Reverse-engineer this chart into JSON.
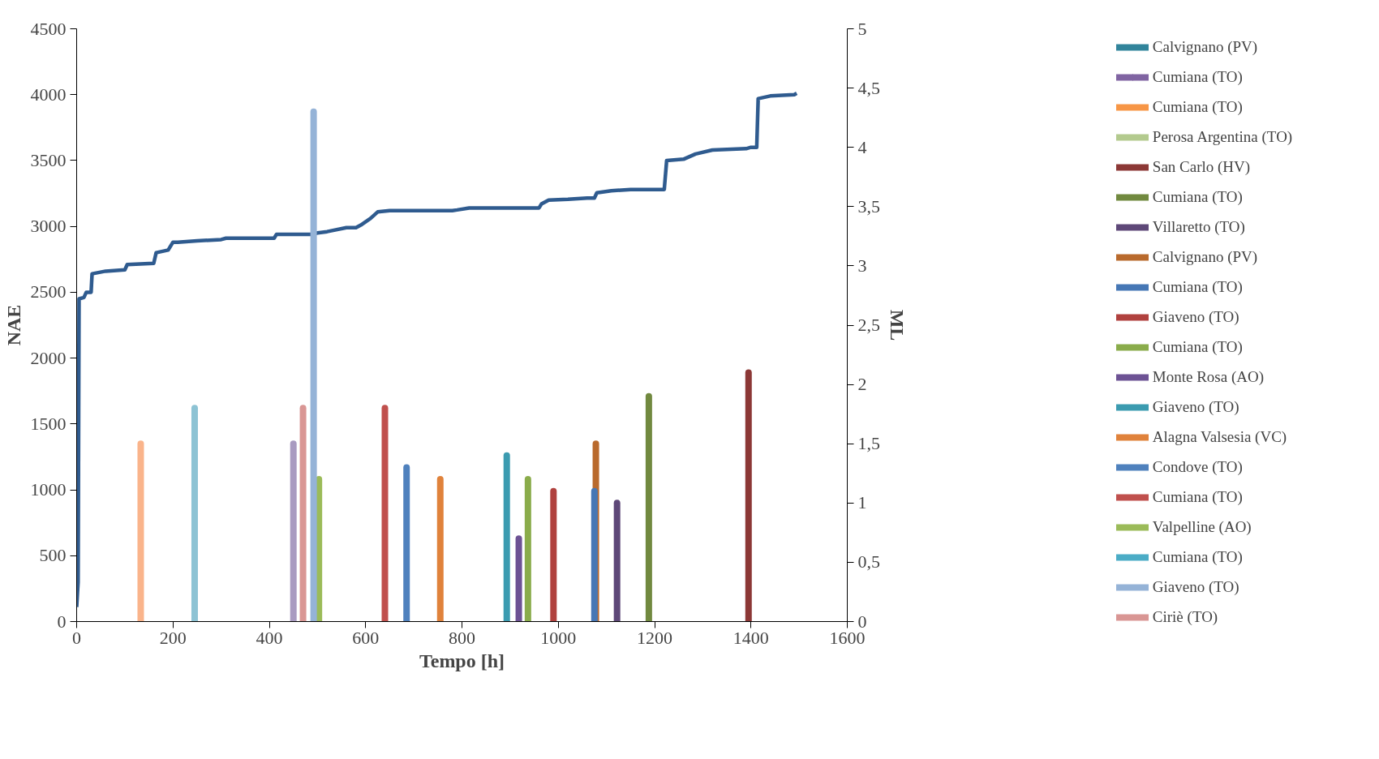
{
  "chart_data": {
    "type": "line",
    "xlabel": "Tempo [h]",
    "ylabel": "NAE",
    "y2label": "ML",
    "xlim": [
      0,
      1600
    ],
    "xticks": [
      0,
      200,
      400,
      600,
      800,
      1000,
      1200,
      1400,
      1600
    ],
    "ylim": [
      0,
      4500
    ],
    "yticks": [
      0,
      500,
      1000,
      1500,
      2000,
      2500,
      3000,
      3500,
      4000,
      4500
    ],
    "y2lim": [
      0,
      5
    ],
    "y2ticks": [
      0,
      {
        "value": 0.5,
        "label": "0,5"
      },
      1,
      {
        "value": 1.5,
        "label": "1,5"
      },
      2,
      {
        "value": 2.5,
        "label": "2,5"
      },
      3,
      {
        "value": 3.5,
        "label": "3,5"
      },
      4,
      {
        "value": 4.5,
        "label": "4,5"
      },
      5
    ],
    "grid": false,
    "legend": "right",
    "series": [
      {
        "type": "line",
        "color": "#2f5b8f",
        "x": [
          0,
          3,
          5,
          15,
          20,
          30,
          32,
          60,
          100,
          105,
          160,
          165,
          190,
          200,
          210,
          250,
          300,
          310,
          410,
          415,
          490,
          500,
          520,
          560,
          580,
          590,
          610,
          625,
          650,
          780,
          790,
          815,
          960,
          965,
          980,
          1020,
          1060,
          1075,
          1080,
          1110,
          1150,
          1220,
          1225,
          1260,
          1285,
          1320,
          1390,
          1400,
          1412,
          1415,
          1440,
          1490,
          1495
        ],
        "values": [
          110,
          300,
          2450,
          2460,
          2500,
          2500,
          2640,
          2660,
          2670,
          2710,
          2720,
          2800,
          2820,
          2880,
          2880,
          2890,
          2900,
          2910,
          2910,
          2940,
          2940,
          2950,
          2960,
          2990,
          2990,
          3010,
          3060,
          3110,
          3120,
          3120,
          3125,
          3140,
          3140,
          3170,
          3200,
          3205,
          3215,
          3215,
          3255,
          3270,
          3280,
          3280,
          3500,
          3510,
          3550,
          3580,
          3590,
          3600,
          3600,
          3970,
          3990,
          4000,
          4010
        ]
      },
      {
        "type": "bar",
        "axis": "y2",
        "name": "Calvignano (PV)",
        "color": "#31849b"
      },
      {
        "type": "bar",
        "axis": "y2",
        "name": "Cumiana (TO)",
        "color": "#8064a2",
        "marker": "cross"
      },
      {
        "type": "bar",
        "axis": "y2",
        "name": "Cumiana (TO)",
        "color": "#f79646"
      },
      {
        "type": "bar",
        "axis": "y2",
        "name": "Perosa Argentina (TO)",
        "color": "#b3ca8e"
      },
      {
        "type": "bar",
        "axis": "y2",
        "name": "San Carlo (HV)",
        "color": "#8c3836",
        "x": [
          1395
        ],
        "values": [
          2.1
        ]
      },
      {
        "type": "bar",
        "axis": "y2",
        "name": "Cumiana (TO)",
        "color": "#71893f",
        "x": [
          1188
        ],
        "values": [
          1.9
        ]
      },
      {
        "type": "bar",
        "axis": "y2",
        "name": "Villaretto (TO)",
        "color": "#5e4878",
        "x": [
          1122
        ],
        "values": [
          1.0
        ]
      },
      {
        "type": "bar",
        "axis": "y2",
        "name": "Calvignano (PV)",
        "color": "#b96a2d",
        "x": [
          1078
        ],
        "values": [
          1.5
        ]
      },
      {
        "type": "bar",
        "axis": "y2",
        "name": "Cumiana (TO)",
        "color": "#4677b5",
        "x": [
          1075
        ],
        "values": [
          1.1
        ]
      },
      {
        "type": "bar",
        "axis": "y2",
        "name": "Giaveno (TO)",
        "color": "#b0413e",
        "x": [
          990
        ],
        "values": [
          1.1
        ]
      },
      {
        "type": "bar",
        "axis": "y2",
        "name": "Cumiana (TO)",
        "color": "#8aac4b",
        "x": [
          937
        ],
        "values": [
          1.2
        ]
      },
      {
        "type": "bar",
        "axis": "y2",
        "name": "Monte Rosa (AO)",
        "color": "#6d5294",
        "x": [
          918
        ],
        "values": [
          0.7
        ]
      },
      {
        "type": "bar",
        "axis": "y2",
        "name": "Giaveno (TO)",
        "color": "#3b9bb0",
        "x": [
          893
        ],
        "values": [
          1.4
        ]
      },
      {
        "type": "bar",
        "axis": "y2",
        "name": "Alagna Valsesia (VC)",
        "color": "#e0823b",
        "x": [
          755
        ],
        "values": [
          1.2
        ]
      },
      {
        "type": "bar",
        "axis": "y2",
        "name": "Condove (TO)",
        "color": "#4f81bd",
        "x": [
          685
        ],
        "values": [
          1.3
        ]
      },
      {
        "type": "bar",
        "axis": "y2",
        "name": "Cumiana (TO)",
        "color": "#c0504d",
        "x": [
          640
        ],
        "values": [
          1.8
        ]
      },
      {
        "type": "bar",
        "axis": "y2",
        "name": "Valpelline (AO)",
        "color": "#9bbb59",
        "x": [
          503
        ],
        "values": [
          1.2
        ]
      },
      {
        "type": "bar",
        "axis": "y2",
        "name": "Cumiana (TO)",
        "color": "#4bacc6"
      },
      {
        "type": "bar",
        "axis": "y2",
        "name": "Giaveno (TO)",
        "color": "#95b3d7",
        "x": [
          492
        ],
        "values": [
          4.3
        ]
      },
      {
        "type": "bar",
        "axis": "y2",
        "name": "Ciriè (TO)",
        "color": "#d99694",
        "x": [
          470
        ],
        "values": [
          1.8
        ]
      },
      {
        "type": "bar",
        "axis": "y2",
        "color": "#a99bc1",
        "x": [
          450
        ],
        "values": [
          1.5
        ]
      },
      {
        "type": "bar",
        "axis": "y2",
        "color": "#8dc3d4",
        "x": [
          245
        ],
        "values": [
          1.8
        ]
      },
      {
        "type": "bar",
        "axis": "y2",
        "color": "#fab48b",
        "x": [
          133
        ],
        "values": [
          1.5
        ]
      }
    ]
  }
}
